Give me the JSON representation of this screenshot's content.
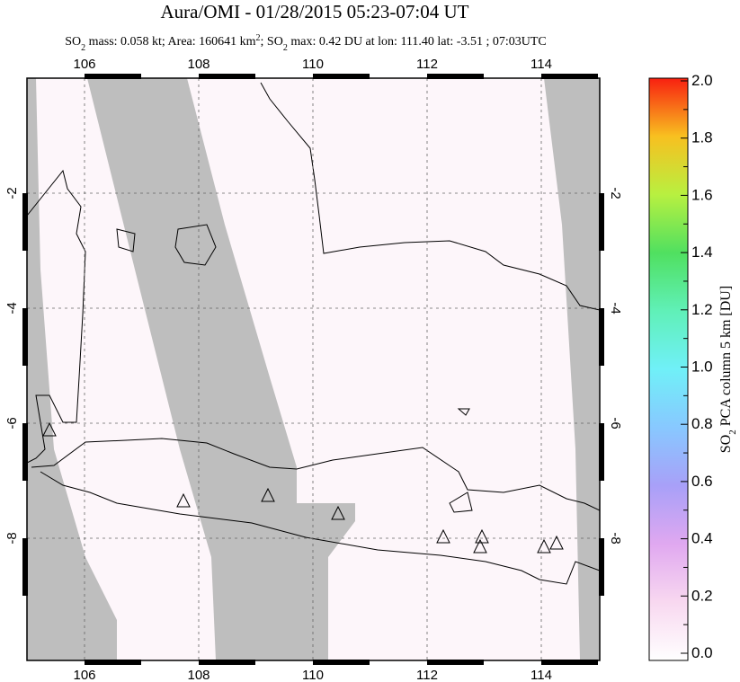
{
  "title": "Aura/OMI - 01/28/2015 05:23-07:04 UT",
  "subtitle": [
    "SO",
    "2",
    " mass: 0.058 kt; Area: 160641 km",
    "2",
    "; SO",
    "2",
    " max: 0.42 DU at lon: 111.40 lat: -3.51 ; 07:03UTC"
  ],
  "map": {
    "lon_ticks": [
      "106",
      "108",
      "110",
      "112",
      "114"
    ],
    "lat_ticks": [
      "-2",
      "-4",
      "-6",
      "-8"
    ]
  },
  "colorbar": {
    "ticks": [
      "0.0",
      "0.2",
      "0.4",
      "0.6",
      "0.8",
      "1.0",
      "1.2",
      "1.4",
      "1.6",
      "1.8",
      "2.0"
    ],
    "label": [
      "SO",
      "2",
      " PCA column 5 km [DU]"
    ]
  }
}
